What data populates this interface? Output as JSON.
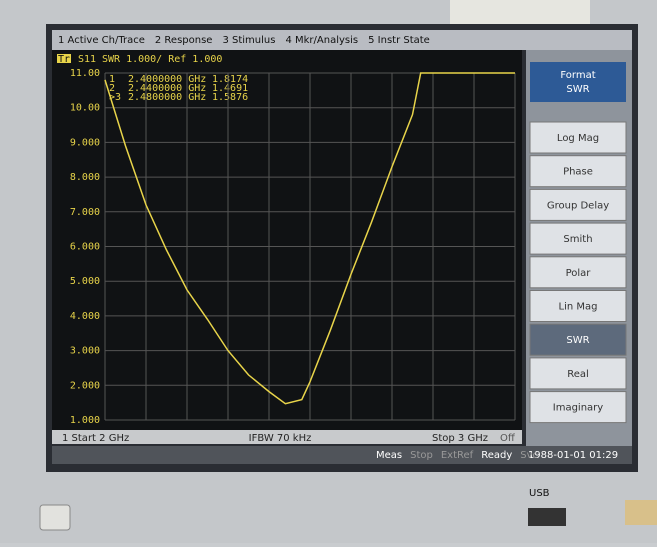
{
  "menu": [
    "1 Active Ch/Trace",
    "2 Response",
    "3 Stimulus",
    "4 Mkr/Analysis",
    "5 Instr State"
  ],
  "trace_header": {
    "trace": "Tr1",
    "param": "S11",
    "format": "SWR 1.000/ Ref 1.000"
  },
  "markers": [
    {
      "id": "1",
      "stimulus": "2.4000000 GHz",
      "response": "1.8174"
    },
    {
      "id": "2",
      "stimulus": "2.4400000 GHz",
      "response": "1.4691"
    },
    {
      "id": ">3",
      "stimulus": "2.4800000 GHz",
      "response": "1.5876"
    }
  ],
  "chart_data": {
    "type": "line",
    "x": [
      2.0,
      2.05,
      2.1,
      2.15,
      2.2,
      2.25,
      2.3,
      2.35,
      2.4,
      2.44,
      2.48,
      2.5,
      2.55,
      2.6,
      2.65,
      2.7,
      2.75,
      2.77,
      2.8,
      2.9,
      3.0
    ],
    "series": [
      {
        "color": "#e8d44a",
        "values": [
          10.8,
          8.9,
          7.2,
          5.9,
          4.75,
          3.9,
          3.0,
          2.3,
          1.8174,
          1.4691,
          1.5876,
          2.1,
          3.6,
          5.2,
          6.7,
          8.3,
          9.8,
          11,
          11,
          11,
          11
        ]
      }
    ],
    "xlim": [
      2,
      3
    ],
    "ylim": [
      1,
      11
    ],
    "xticks": [
      2,
      2.1,
      2.2,
      2.3,
      2.4,
      2.5,
      2.6,
      2.7,
      2.8,
      2.9,
      3
    ],
    "yticks": [
      {
        "value": 1,
        "label": "1.000"
      },
      {
        "value": 2,
        "label": "2.000"
      },
      {
        "value": 3,
        "label": "3.000"
      },
      {
        "value": 4,
        "label": "4.000"
      },
      {
        "value": 5,
        "label": "5.000"
      },
      {
        "value": 6,
        "label": "6.000"
      },
      {
        "value": 7,
        "label": "7.000"
      },
      {
        "value": 8,
        "label": "8.000"
      },
      {
        "value": 9,
        "label": "9.000"
      },
      {
        "value": 10,
        "label": "10.00"
      },
      {
        "value": 11,
        "label": "11.00"
      }
    ],
    "grid": true
  },
  "footer": {
    "start": "1 Start 2 GHz",
    "ifbw": "IFBW 70 kHz",
    "stop": "Stop 3 GHz",
    "mode": "Off"
  },
  "softkeys": {
    "title": "Format",
    "current": "SWR",
    "items": [
      "Log Mag",
      "Phase",
      "Group Delay",
      "Smith",
      "Polar",
      "Lin Mag",
      "SWR",
      "Real",
      "Imaginary"
    ],
    "selected": 6
  },
  "status": [
    "Meas",
    "Stop",
    "ExtRef",
    "Ready",
    "Svc"
  ],
  "datetime": "1988-01-01 01:29",
  "usb": "USB"
}
